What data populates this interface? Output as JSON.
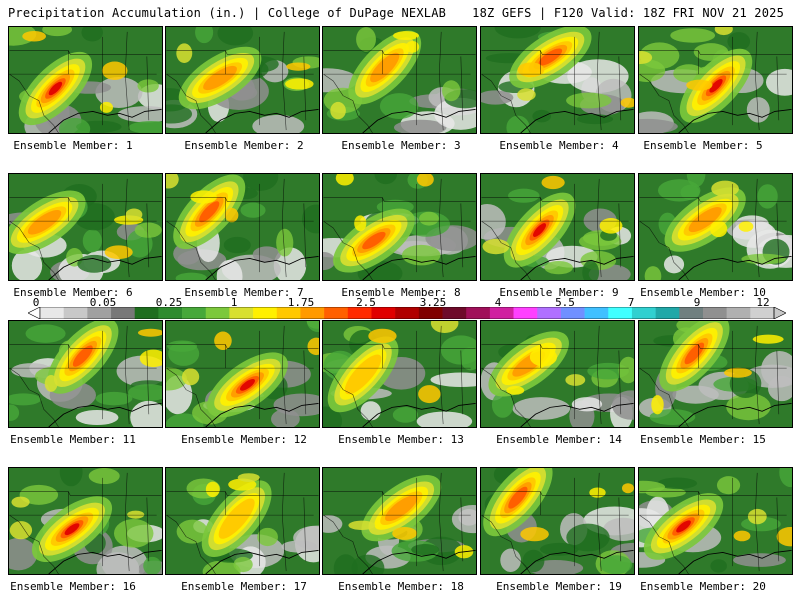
{
  "header": {
    "left": "Precipitation Accumulation (in.) | College of DuPage NEXLAB",
    "right": "18Z GEFS | F120 Valid: 18Z FRI NOV 21 2025"
  },
  "colorbar": {
    "labels": [
      "0",
      "0.05",
      "0.25",
      "1",
      "1.75",
      "2.5",
      "3.25",
      "4",
      "5.5",
      "7",
      "9",
      "12"
    ],
    "colors": [
      "#e8e8e8",
      "#c8c8c8",
      "#a0a0a0",
      "#787878",
      "#1f6e1f",
      "#2e8b2e",
      "#47a83a",
      "#7cc83c",
      "#d8e030",
      "#fff000",
      "#ffc800",
      "#ff9a00",
      "#ff6000",
      "#ff2a00",
      "#e00000",
      "#b00000",
      "#800000",
      "#6e0a2a",
      "#a0105a",
      "#d020a0",
      "#ff40ff",
      "#b070ff",
      "#7090ff",
      "#40c0ff",
      "#40ffff",
      "#30d0d0",
      "#20a8a8",
      "#708080",
      "#909090",
      "#b0b0b0",
      "#d0d0d0"
    ]
  },
  "members": [
    {
      "label": "Ensemble Member: 1"
    },
    {
      "label": "Ensemble Member: 2"
    },
    {
      "label": "Ensemble Member: 3"
    },
    {
      "label": "Ensemble Member: 4"
    },
    {
      "label": "Ensemble Member: 5"
    },
    {
      "label": "Ensemble Member: 6"
    },
    {
      "label": "Ensemble Member: 7"
    },
    {
      "label": "Ensemble Member: 8"
    },
    {
      "label": "Ensemble Member: 9"
    },
    {
      "label": "Ensemble Member: 10"
    },
    {
      "label": "Ensemble Member: 11"
    },
    {
      "label": "Ensemble Member: 12"
    },
    {
      "label": "Ensemble Member: 13"
    },
    {
      "label": "Ensemble Member: 14"
    },
    {
      "label": "Ensemble Member: 15"
    },
    {
      "label": "Ensemble Member: 16"
    },
    {
      "label": "Ensemble Member: 17"
    },
    {
      "label": "Ensemble Member: 18"
    },
    {
      "label": "Ensemble Member: 19"
    },
    {
      "label": "Ensemble Member: 20"
    }
  ]
}
